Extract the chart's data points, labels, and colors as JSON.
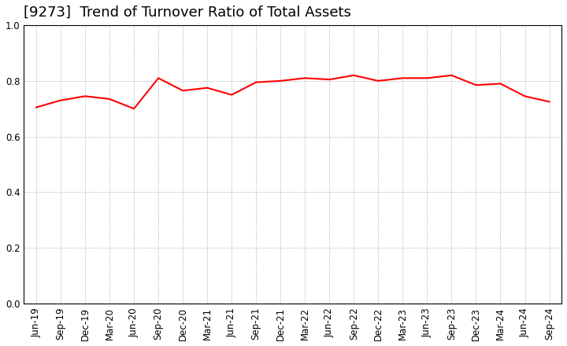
{
  "title": "[9273]  Trend of Turnover Ratio of Total Assets",
  "x_labels": [
    "Jun-19",
    "Sep-19",
    "Dec-19",
    "Mar-20",
    "Jun-20",
    "Sep-20",
    "Dec-20",
    "Mar-21",
    "Jun-21",
    "Sep-21",
    "Dec-21",
    "Mar-22",
    "Jun-22",
    "Sep-22",
    "Dec-22",
    "Mar-23",
    "Jun-23",
    "Sep-23",
    "Dec-23",
    "Mar-24",
    "Jun-24",
    "Sep-24"
  ],
  "y_values": [
    0.705,
    0.73,
    0.745,
    0.735,
    0.7,
    0.81,
    0.765,
    0.775,
    0.75,
    0.795,
    0.8,
    0.81,
    0.805,
    0.82,
    0.8,
    0.81,
    0.81,
    0.82,
    0.785,
    0.79,
    0.745,
    0.725
  ],
  "line_color": "#FF0000",
  "line_width": 1.5,
  "ylim": [
    0.0,
    1.0
  ],
  "yticks": [
    0.0,
    0.2,
    0.4,
    0.6,
    0.8,
    1.0
  ],
  "title_fontsize": 13,
  "tick_fontsize": 8.5,
  "background_color": "#ffffff",
  "grid_color": "#999999",
  "grid_style": ":"
}
